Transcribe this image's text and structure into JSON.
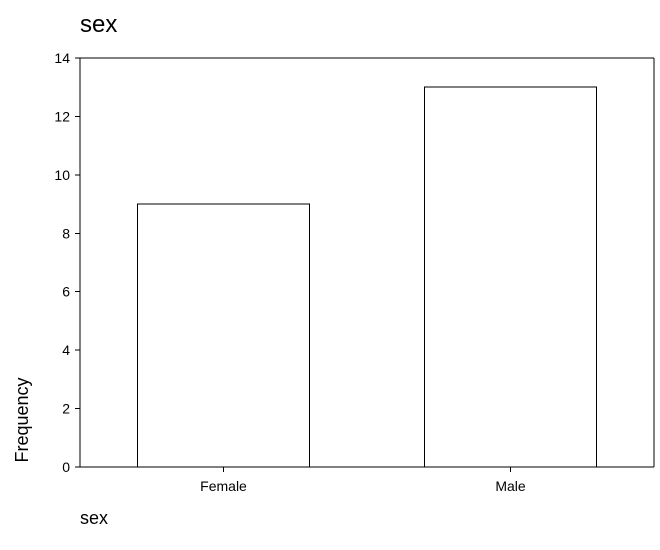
{
  "chart_data": {
    "type": "bar",
    "title": "sex",
    "xlabel": "sex",
    "ylabel": "Frequency",
    "categories": [
      "Female",
      "Male"
    ],
    "values": [
      9,
      13
    ],
    "ylim": [
      0,
      14
    ],
    "yticks": [
      "0",
      "2",
      "4",
      "6",
      "8",
      "10",
      "12",
      "14"
    ],
    "grid": false,
    "legend": "none",
    "colors": {
      "bar_fill": "#ffffff",
      "bar_stroke": "#000000",
      "axis": "#000000",
      "background": "#ffffff"
    }
  }
}
